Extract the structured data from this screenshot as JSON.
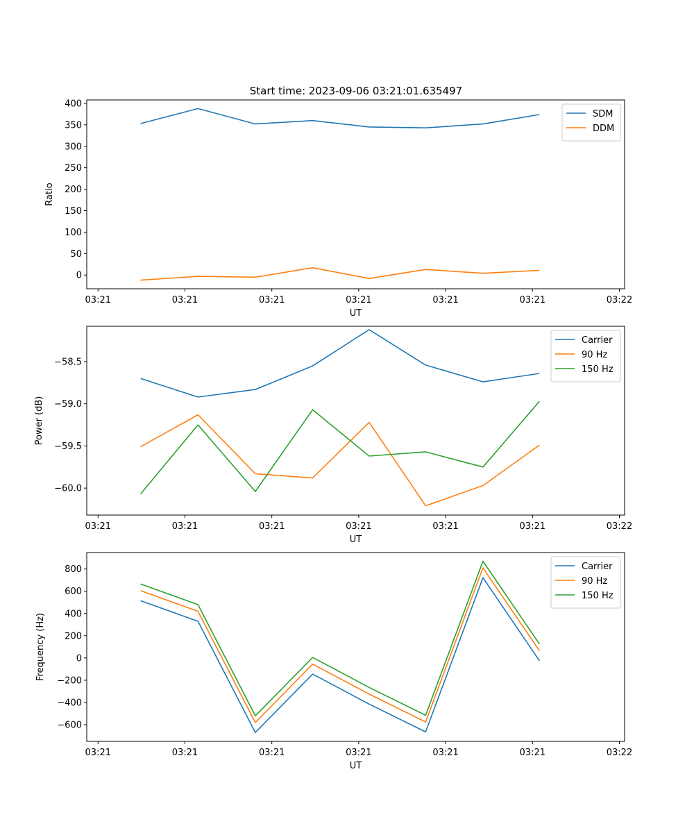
{
  "figure": {
    "title": "Start time: 2023-09-06 03:21:01.635497"
  },
  "chart_data": [
    {
      "type": "line",
      "xlabel": "UT",
      "ylabel": "Ratio",
      "x_tick_labels": [
        "03:21",
        "03:21",
        "03:21",
        "03:21",
        "03:21",
        "03:21",
        "03:22"
      ],
      "y_ticks": [
        0,
        50,
        100,
        150,
        200,
        250,
        300,
        350,
        400
      ],
      "y_tick_labels": [
        "0",
        "50",
        "100",
        "150",
        "200",
        "250",
        "300",
        "350",
        "400"
      ],
      "ylim": [
        -32,
        408
      ],
      "xlim": [
        -0.13,
        6.06
      ],
      "x": [
        0.49,
        1.15,
        1.81,
        2.47,
        3.12,
        3.77,
        4.43,
        5.08
      ],
      "series": [
        {
          "name": "SDM",
          "color": "#1f77b4",
          "values": [
            353,
            388,
            352,
            360,
            345,
            343,
            352,
            374
          ]
        },
        {
          "name": "DDM",
          "color": "#ff7f0e",
          "values": [
            -12,
            -3,
            -5,
            17,
            -8,
            13,
            4,
            11
          ]
        }
      ],
      "legend": "upper right",
      "grid": false
    },
    {
      "type": "line",
      "xlabel": "UT",
      "ylabel": "Power (dB)",
      "x_tick_labels": [
        "03:21",
        "03:21",
        "03:21",
        "03:21",
        "03:21",
        "03:21",
        "03:22"
      ],
      "y_ticks": [
        -60.0,
        -59.5,
        -59.0,
        -58.5
      ],
      "y_tick_labels": [
        "−60.0",
        "−59.5",
        "−59.0",
        "−58.5"
      ],
      "ylim": [
        -60.32,
        -58.08
      ],
      "xlim": [
        -0.13,
        6.06
      ],
      "x": [
        0.49,
        1.15,
        1.81,
        2.47,
        3.12,
        3.77,
        4.43,
        5.08
      ],
      "series": [
        {
          "name": "Carrier",
          "color": "#1f77b4",
          "values": [
            -58.7,
            -58.92,
            -58.83,
            -58.55,
            -58.12,
            -58.54,
            -58.74,
            -58.64
          ]
        },
        {
          "name": "90 Hz",
          "color": "#ff7f0e",
          "values": [
            -59.51,
            -59.13,
            -59.83,
            -59.88,
            -59.22,
            -60.21,
            -59.97,
            -59.49
          ]
        },
        {
          "name": "150 Hz",
          "color": "#2ca02c",
          "values": [
            -60.07,
            -59.25,
            -60.04,
            -59.07,
            -59.62,
            -59.57,
            -59.75,
            -58.97
          ]
        }
      ],
      "legend": "upper right",
      "grid": false
    },
    {
      "type": "line",
      "xlabel": "UT",
      "ylabel": "Frequency (Hz)",
      "x_tick_labels": [
        "03:21",
        "03:21",
        "03:21",
        "03:21",
        "03:21",
        "03:21",
        "03:22"
      ],
      "y_ticks": [
        -600,
        -400,
        -200,
        0,
        200,
        400,
        600,
        800
      ],
      "y_tick_labels": [
        "−600",
        "−400",
        "−200",
        "0",
        "200",
        "400",
        "600",
        "800"
      ],
      "ylim": [
        -750,
        948
      ],
      "xlim": [
        -0.13,
        6.06
      ],
      "x": [
        0.49,
        1.15,
        1.81,
        2.47,
        3.12,
        3.77,
        4.43,
        5.08
      ],
      "series": [
        {
          "name": "Carrier",
          "color": "#1f77b4",
          "values": [
            515,
            330,
            -670,
            -145,
            -415,
            -665,
            722,
            -25
          ]
        },
        {
          "name": "90 Hz",
          "color": "#ff7f0e",
          "values": [
            605,
            420,
            -580,
            -55,
            -325,
            -575,
            810,
            65
          ]
        },
        {
          "name": "150 Hz",
          "color": "#2ca02c",
          "values": [
            665,
            480,
            -520,
            5,
            -265,
            -515,
            870,
            125
          ]
        }
      ],
      "legend": "upper right",
      "grid": false
    }
  ]
}
